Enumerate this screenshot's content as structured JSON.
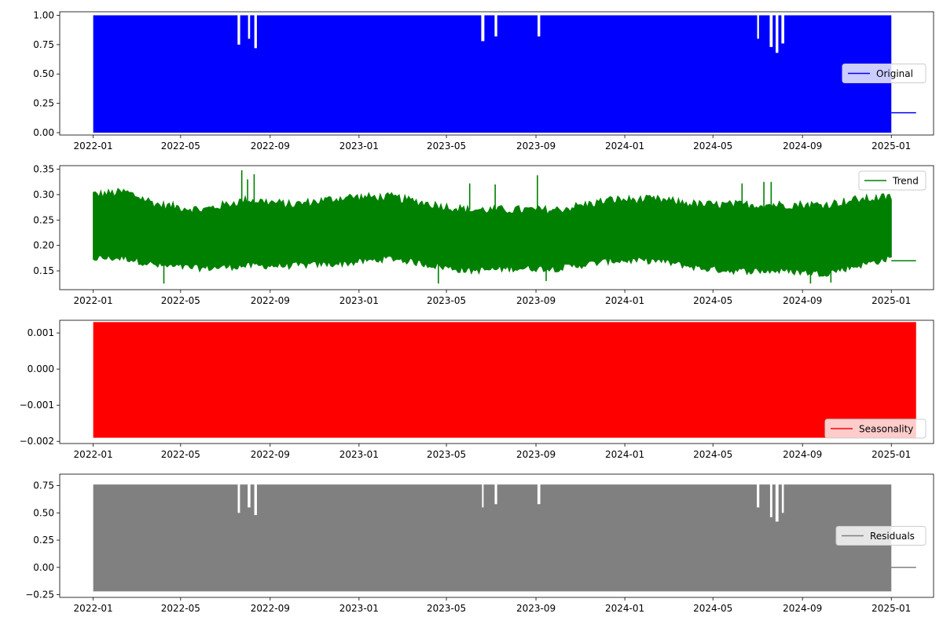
{
  "chart_data": [
    {
      "type": "line",
      "style": "dense-band",
      "xlim": [
        "2021-11-16",
        "2025-02-28"
      ],
      "x_ticks": [
        "2022-01",
        "2022-05",
        "2022-09",
        "2023-01",
        "2023-05",
        "2023-09",
        "2024-01",
        "2024-05",
        "2024-09",
        "2025-01"
      ],
      "ylim": [
        -0.02,
        1.03
      ],
      "y_ticks": [
        {
          "value": 0.0,
          "label": "0.00"
        },
        {
          "value": 0.25,
          "label": "0.25"
        },
        {
          "value": 0.5,
          "label": "0.50"
        },
        {
          "value": 0.75,
          "label": "0.75"
        },
        {
          "value": 1.0,
          "label": "1.00"
        }
      ],
      "grid": false,
      "legend_position": "center-right",
      "series": [
        {
          "name": "Original",
          "color": "#0000ff",
          "band": {
            "x": [
              "2022-01-01",
              "2025-01-01"
            ],
            "low": 0.0,
            "high": 1.0
          },
          "tail": {
            "x": [
              "2025-01-01",
              "2025-02-04"
            ],
            "value": 0.17
          },
          "dips": [
            {
              "x": "2022-07-20",
              "y": 0.75
            },
            {
              "x": "2022-08-03",
              "y": 0.8
            },
            {
              "x": "2022-08-12",
              "y": 0.72
            },
            {
              "x": "2023-06-20",
              "y": 0.78
            },
            {
              "x": "2023-07-08",
              "y": 0.82
            },
            {
              "x": "2023-09-05",
              "y": 0.82
            },
            {
              "x": "2024-07-02",
              "y": 0.8
            },
            {
              "x": "2024-07-20",
              "y": 0.73
            },
            {
              "x": "2024-07-28",
              "y": 0.68
            },
            {
              "x": "2024-08-05",
              "y": 0.76
            }
          ]
        }
      ]
    },
    {
      "type": "line",
      "style": "dense-band",
      "xlim": [
        "2021-11-16",
        "2025-02-28"
      ],
      "x_ticks": [
        "2022-01",
        "2022-05",
        "2022-09",
        "2023-01",
        "2023-05",
        "2023-09",
        "2024-01",
        "2024-05",
        "2024-09",
        "2025-01"
      ],
      "ylim": [
        0.113,
        0.357
      ],
      "y_ticks": [
        {
          "value": 0.15,
          "label": "0.15"
        },
        {
          "value": 0.2,
          "label": "0.20"
        },
        {
          "value": 0.25,
          "label": "0.25"
        },
        {
          "value": 0.3,
          "label": "0.30"
        },
        {
          "value": 0.35,
          "label": "0.35"
        }
      ],
      "grid": false,
      "legend_position": "upper-right",
      "series": [
        {
          "name": "Trend",
          "color": "#008000",
          "envelope": {
            "x": [
              "2022-01-01",
              "2022-02-15",
              "2022-04-01",
              "2022-06-01",
              "2022-08-01",
              "2022-10-01",
              "2022-12-15",
              "2023-02-15",
              "2023-04-15",
              "2023-06-01",
              "2023-08-01",
              "2023-10-01",
              "2023-12-15",
              "2024-02-15",
              "2024-04-15",
              "2024-06-01",
              "2024-08-01",
              "2024-10-01",
              "2024-11-15",
              "2025-01-01"
            ],
            "high": [
              0.3,
              0.305,
              0.28,
              0.27,
              0.29,
              0.28,
              0.295,
              0.295,
              0.28,
              0.27,
              0.27,
              0.27,
              0.29,
              0.29,
              0.28,
              0.28,
              0.28,
              0.28,
              0.29,
              0.295
            ],
            "low": [
              0.175,
              0.175,
              0.16,
              0.155,
              0.16,
              0.16,
              0.165,
              0.175,
              0.16,
              0.15,
              0.155,
              0.155,
              0.17,
              0.17,
              0.155,
              0.15,
              0.15,
              0.145,
              0.16,
              0.175
            ]
          },
          "tail": {
            "x": [
              "2025-01-01",
              "2025-02-04"
            ],
            "value": 0.17
          },
          "spikes": [
            {
              "x": "2022-07-24",
              "y": 0.348
            },
            {
              "x": "2022-08-10",
              "y": 0.34
            },
            {
              "x": "2022-08-01",
              "y": 0.33
            },
            {
              "x": "2023-09-03",
              "y": 0.338
            },
            {
              "x": "2023-07-07",
              "y": 0.32
            },
            {
              "x": "2023-06-02",
              "y": 0.322
            },
            {
              "x": "2024-07-10",
              "y": 0.325
            },
            {
              "x": "2024-07-20",
              "y": 0.325
            },
            {
              "x": "2024-06-10",
              "y": 0.322
            },
            {
              "x": "2022-04-08",
              "y": 0.125
            },
            {
              "x": "2023-04-20",
              "y": 0.125
            },
            {
              "x": "2024-09-12",
              "y": 0.125
            },
            {
              "x": "2024-10-10",
              "y": 0.127
            },
            {
              "x": "2023-09-15",
              "y": 0.13
            }
          ]
        }
      ]
    },
    {
      "type": "line",
      "style": "dense-band",
      "xlim": [
        "2021-11-16",
        "2025-02-28"
      ],
      "x_ticks": [
        "2022-01",
        "2022-05",
        "2022-09",
        "2023-01",
        "2023-05",
        "2023-09",
        "2024-01",
        "2024-05",
        "2024-09",
        "2025-01"
      ],
      "ylim": [
        -0.00206,
        0.00135
      ],
      "y_ticks": [
        {
          "value": -0.002,
          "label": "−0.002"
        },
        {
          "value": -0.001,
          "label": "−0.001"
        },
        {
          "value": 0.0,
          "label": "0.000"
        },
        {
          "value": 0.001,
          "label": "0.001"
        }
      ],
      "grid": false,
      "legend_position": "lower-right",
      "series": [
        {
          "name": "Seasonality",
          "color": "#ff0000",
          "band": {
            "x": [
              "2022-01-01",
              "2025-02-04"
            ],
            "low": -0.0019,
            "high": 0.0013
          }
        }
      ]
    },
    {
      "type": "line",
      "style": "dense-band",
      "xlim": [
        "2021-11-16",
        "2025-02-28"
      ],
      "x_ticks": [
        "2022-01",
        "2022-05",
        "2022-09",
        "2023-01",
        "2023-05",
        "2023-09",
        "2024-01",
        "2024-05",
        "2024-09",
        "2025-01"
      ],
      "ylim": [
        -0.275,
        0.855
      ],
      "y_ticks": [
        {
          "value": -0.25,
          "label": "−0.25"
        },
        {
          "value": 0.0,
          "label": "0.00"
        },
        {
          "value": 0.25,
          "label": "0.25"
        },
        {
          "value": 0.5,
          "label": "0.50"
        },
        {
          "value": 0.75,
          "label": "0.75"
        }
      ],
      "grid": false,
      "legend_position": "center-right",
      "series": [
        {
          "name": "Residuals",
          "color": "#808080",
          "band": {
            "x": [
              "2022-01-01",
              "2025-01-01"
            ],
            "low": -0.22,
            "high": 0.76
          },
          "tail": {
            "x": [
              "2025-01-01",
              "2025-02-04"
            ],
            "value": 0.0
          },
          "dips": [
            {
              "x": "2022-07-20",
              "y": 0.5
            },
            {
              "x": "2022-08-03",
              "y": 0.55
            },
            {
              "x": "2022-08-12",
              "y": 0.48
            },
            {
              "x": "2023-06-20",
              "y": 0.55
            },
            {
              "x": "2023-07-08",
              "y": 0.58
            },
            {
              "x": "2023-09-05",
              "y": 0.58
            },
            {
              "x": "2024-07-02",
              "y": 0.55
            },
            {
              "x": "2024-07-20",
              "y": 0.46
            },
            {
              "x": "2024-07-28",
              "y": 0.42
            },
            {
              "x": "2024-08-05",
              "y": 0.5
            }
          ]
        }
      ]
    }
  ]
}
